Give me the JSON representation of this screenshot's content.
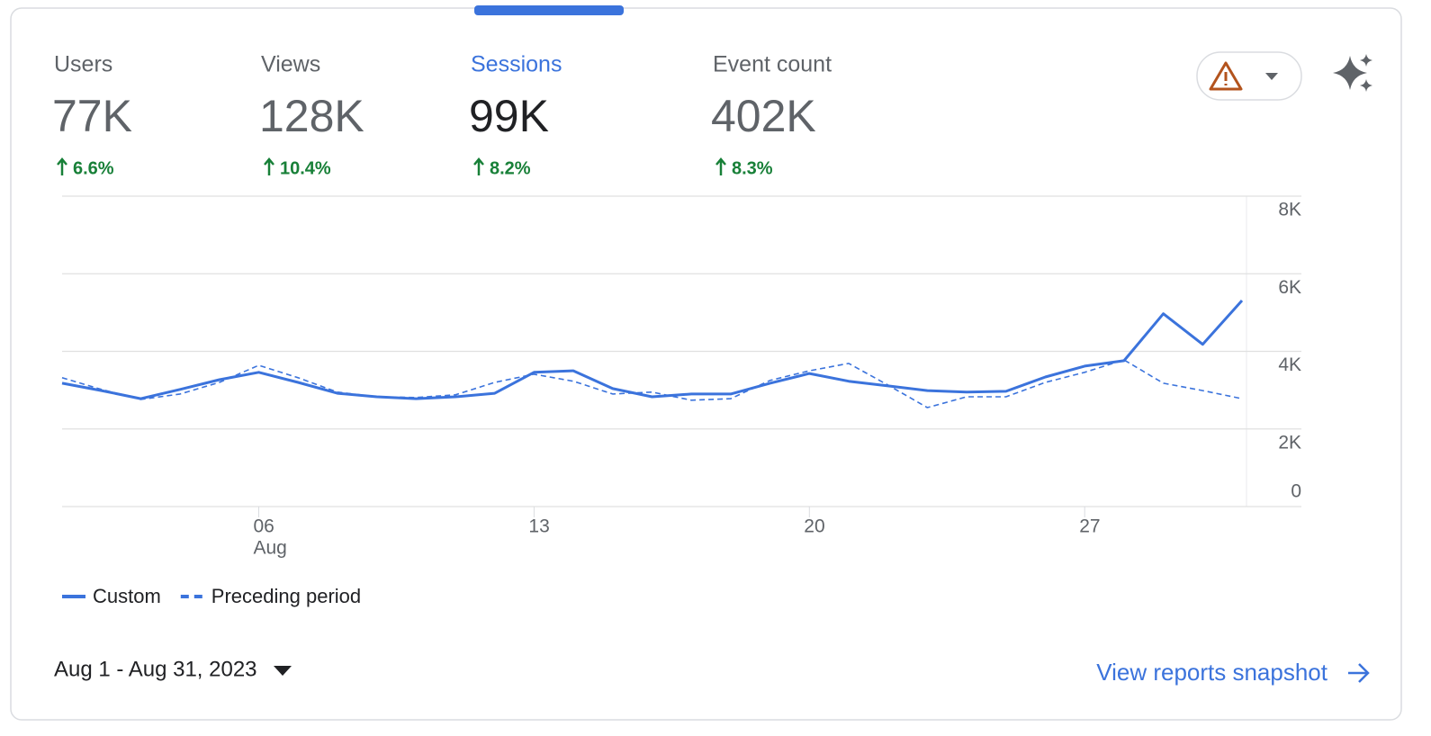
{
  "metrics": [
    {
      "label": "Users",
      "value": "77K",
      "change": "6.6%"
    },
    {
      "label": "Views",
      "value": "128K",
      "change": "10.4%"
    },
    {
      "label": "Sessions",
      "value": "99K",
      "change": "8.2%"
    },
    {
      "label": "Event count",
      "value": "402K",
      "change": "8.3%"
    }
  ],
  "chart_data": {
    "type": "line",
    "categories": [
      null,
      null,
      null,
      null,
      null,
      "06",
      null,
      null,
      null,
      null,
      null,
      null,
      "13",
      null,
      null,
      null,
      null,
      null,
      null,
      "20",
      null,
      null,
      null,
      null,
      null,
      null,
      "27",
      null,
      null,
      null,
      null
    ],
    "month_label": "Aug",
    "series": [
      {
        "name": "Custom",
        "color": "#3b73dc",
        "dashed": false,
        "values": [
          3180,
          2990,
          2780,
          3020,
          3270,
          3460,
          3200,
          2920,
          2830,
          2780,
          2830,
          2920,
          3460,
          3500,
          3040,
          2830,
          2900,
          2900,
          3180,
          3430,
          3230,
          3110,
          2990,
          2950,
          2970,
          3340,
          3620,
          3760,
          4970,
          4180,
          5310
        ]
      },
      {
        "name": "Preceding period",
        "color": "#3b73dc",
        "dashed": true,
        "values": [
          3320,
          3020,
          2760,
          2900,
          3200,
          3640,
          3320,
          2950,
          2830,
          2810,
          2880,
          3200,
          3410,
          3230,
          2900,
          2950,
          2740,
          2780,
          3250,
          3500,
          3690,
          3130,
          2550,
          2830,
          2830,
          3200,
          3460,
          3780,
          3180,
          2990,
          2780
        ]
      }
    ],
    "ylim": [
      0,
      8000
    ],
    "yticks": [
      0,
      {
        "value": 2000,
        "label": "2K"
      },
      {
        "value": 4000,
        "label": "4K"
      },
      {
        "value": 6000,
        "label": "6K"
      },
      {
        "value": 8000,
        "label": "8K"
      }
    ],
    "grid": true
  },
  "date_range": "Aug 1 - Aug 31, 2023",
  "link": "View reports snapshot"
}
